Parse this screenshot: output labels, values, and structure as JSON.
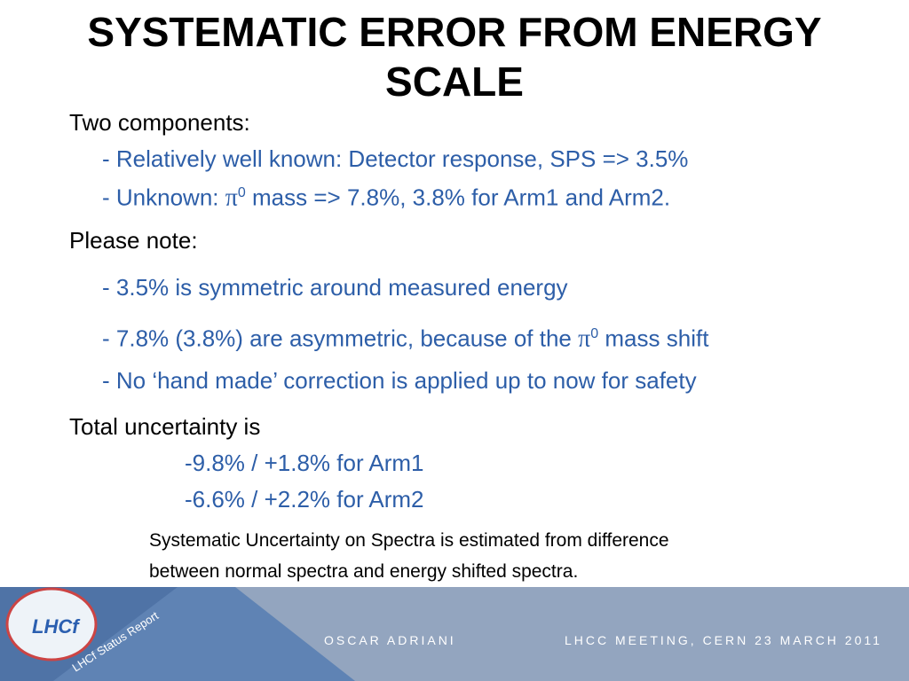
{
  "title": "SYSTEMATIC ERROR FROM ENERGY SCALE",
  "body": [
    {
      "parts": [
        "Two components:"
      ]
    },
    {
      "parts": [
        "- Relatively well known: Detector response, SPS => 3.5%"
      ]
    },
    {
      "parts": [
        "- Unknown: ",
        "π",
        "0",
        " mass => 7.8%, 3.8% for Arm1 and Arm2."
      ]
    },
    {
      "parts": [
        "Please note:"
      ]
    },
    {
      "parts": [
        "- 3.5% is symmetric around measured energy"
      ]
    },
    {
      "parts": [
        "- 7.8% (3.8%) are asymmetric, because of the ",
        "π",
        "0",
        " mass shift"
      ]
    },
    {
      "parts": [
        "- No ‘hand made’ correction is applied up to now for safety"
      ]
    },
    {
      "parts": [
        "Total uncertainty is"
      ]
    },
    {
      "parts": [
        "-9.8% / +1.8% for Arm1"
      ]
    },
    {
      "parts": [
        "-6.6% / +2.2% for Arm2"
      ]
    }
  ],
  "note": [
    "Systematic Uncertainty on Spectra is estimated from difference",
    "between normal spectra and energy shifted spectra."
  ],
  "footer": {
    "logo": "LHCf",
    "report": "LHCf Status Report",
    "author": "OSCAR ADRIANI",
    "meeting": "LHCC MEETING, CERN 23 MARCH 2011"
  }
}
